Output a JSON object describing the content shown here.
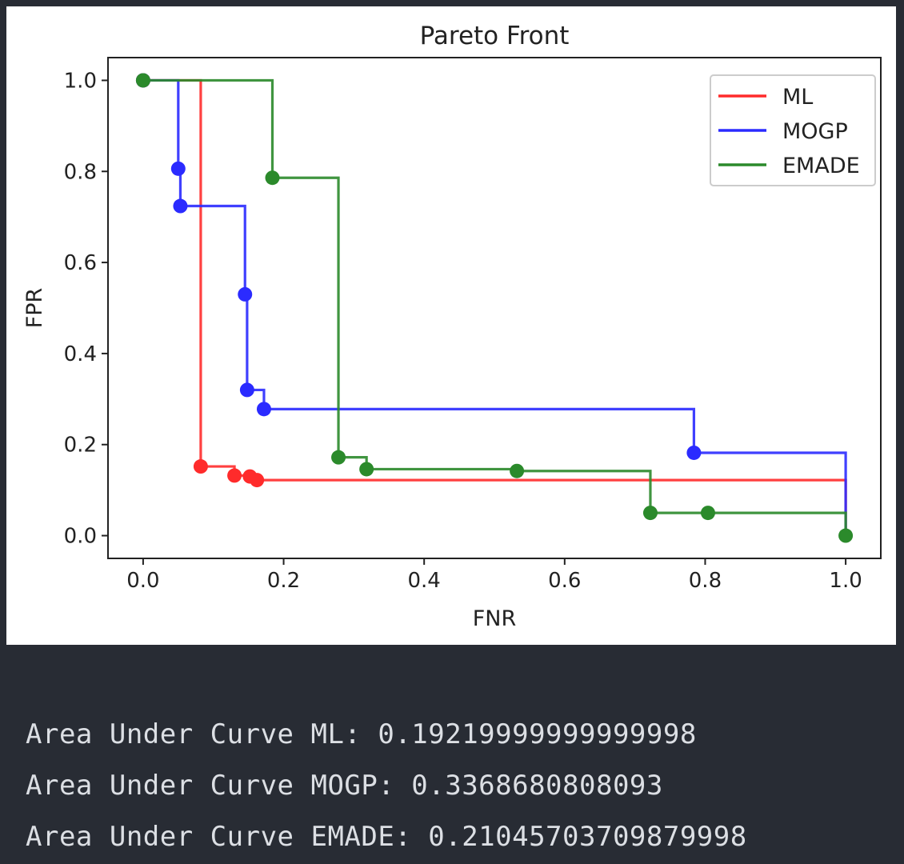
{
  "chart_data": {
    "type": "line",
    "title": "Pareto Front",
    "xlabel": "FNR",
    "ylabel": "FPR",
    "xlim": [
      -0.05,
      1.05
    ],
    "ylim": [
      -0.05,
      1.05
    ],
    "xticks": [
      "0.0",
      "0.2",
      "0.4",
      "0.6",
      "0.8",
      "1.0"
    ],
    "yticks": [
      "0.0",
      "0.2",
      "0.4",
      "0.6",
      "0.8",
      "1.0"
    ],
    "grid": false,
    "legend_position": "top-right",
    "series": [
      {
        "name": "ML",
        "color": "#ff2b2b",
        "points": [
          [
            0.0,
            1.0
          ],
          [
            0.082,
            0.152
          ],
          [
            0.13,
            0.132
          ],
          [
            0.152,
            0.13
          ],
          [
            0.162,
            0.122
          ]
        ],
        "end": [
          1.0,
          0.0
        ]
      },
      {
        "name": "MOGP",
        "color": "#2b2bff",
        "points": [
          [
            0.0,
            1.0
          ],
          [
            0.05,
            0.806
          ],
          [
            0.053,
            0.724
          ],
          [
            0.145,
            0.53
          ],
          [
            0.148,
            0.32
          ],
          [
            0.172,
            0.278
          ],
          [
            0.784,
            0.182
          ]
        ],
        "end": [
          1.0,
          0.0
        ]
      },
      {
        "name": "EMADE",
        "color": "#2b8a2b",
        "points": [
          [
            0.0,
            1.0
          ],
          [
            0.184,
            0.786
          ],
          [
            0.278,
            0.172
          ],
          [
            0.318,
            0.146
          ],
          [
            0.532,
            0.142
          ],
          [
            0.722,
            0.05
          ],
          [
            0.804,
            0.05
          ],
          [
            1.0,
            0.0
          ]
        ],
        "end": [
          1.0,
          0.0
        ]
      }
    ]
  },
  "output": {
    "lines": [
      "Area Under Curve ML: 0.19219999999999998",
      "Area Under Curve MOGP: 0.3368680808093",
      "Area Under Curve EMADE: 0.21045703709879998"
    ]
  }
}
